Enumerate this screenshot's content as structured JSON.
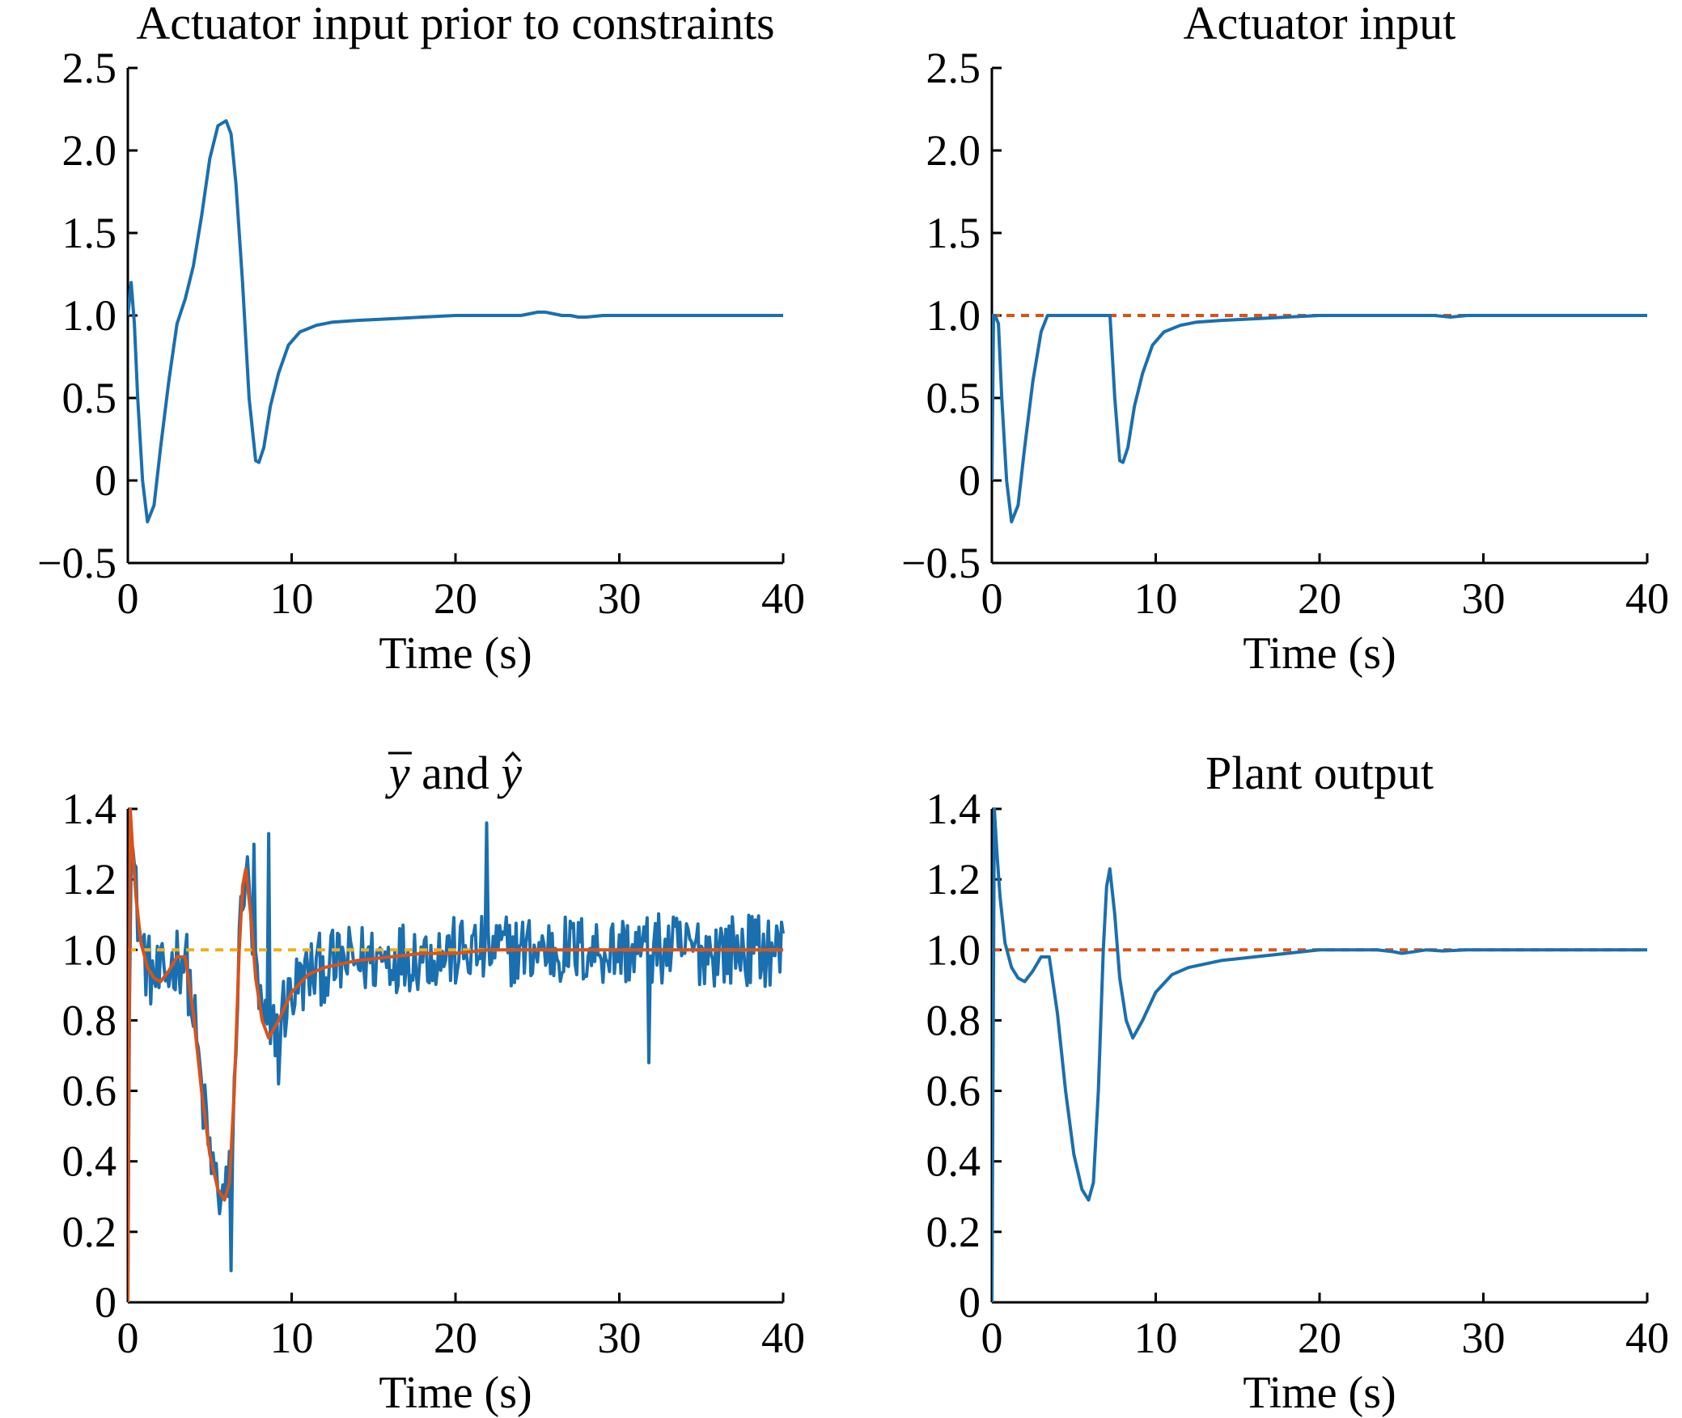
{
  "chart_data": [
    {
      "id": "a",
      "type": "line",
      "title": "Actuator input prior to constraints",
      "xlabel": "Time (s)",
      "ylabel": "",
      "xlim": [
        0,
        40
      ],
      "ylim": [
        -0.5,
        2.5
      ],
      "xticks": [
        0,
        10,
        20,
        30,
        40
      ],
      "xtick_labels": [
        "0",
        "10",
        "20",
        "30",
        "40"
      ],
      "yticks": [
        -0.5,
        0,
        0.5,
        1.0,
        1.5,
        2.0,
        2.5
      ],
      "ytick_labels": [
        "−0.5",
        "0",
        "0.5",
        "1.0",
        "1.5",
        "2.0",
        "2.5"
      ],
      "grid": false,
      "series": [
        {
          "color": "#1a6faf",
          "style": "solid",
          "x": [
            0,
            0.2,
            0.4,
            0.6,
            0.9,
            1.2,
            1.6,
            2.0,
            2.5,
            3.0,
            3.5,
            4.0,
            4.5,
            5.0,
            5.5,
            6.0,
            6.3,
            6.6,
            7.0,
            7.4,
            7.8,
            8.0,
            8.3,
            8.7,
            9.2,
            9.8,
            10.5,
            11.5,
            12.5,
            14,
            16,
            18,
            20,
            22,
            23.5,
            24,
            24.5,
            25,
            25.5,
            26,
            26.5,
            27,
            27.5,
            28,
            29,
            31,
            34,
            37,
            40
          ],
          "y": [
            1.0,
            1.2,
            0.95,
            0.5,
            0.0,
            -0.25,
            -0.15,
            0.2,
            0.6,
            0.95,
            1.1,
            1.3,
            1.6,
            1.95,
            2.15,
            2.18,
            2.1,
            1.8,
            1.2,
            0.5,
            0.12,
            0.11,
            0.2,
            0.45,
            0.65,
            0.82,
            0.9,
            0.94,
            0.96,
            0.97,
            0.98,
            0.99,
            1.0,
            1.0,
            1.0,
            1.0,
            1.01,
            1.02,
            1.02,
            1.01,
            1.0,
            1.0,
            0.99,
            0.99,
            1.0,
            1.0,
            1.0,
            1.0,
            1.0
          ]
        }
      ]
    },
    {
      "id": "b",
      "type": "line",
      "title": "Actuator input",
      "xlabel": "Time (s)",
      "ylabel": "",
      "xlim": [
        0,
        40
      ],
      "ylim": [
        -0.5,
        2.5
      ],
      "xticks": [
        0,
        10,
        20,
        30,
        40
      ],
      "xtick_labels": [
        "0",
        "10",
        "20",
        "30",
        "40"
      ],
      "yticks": [
        -0.5,
        0,
        0.5,
        1.0,
        1.5,
        2.0,
        2.5
      ],
      "ytick_labels": [
        "−0.5",
        "0",
        "0.5",
        "1.0",
        "1.5",
        "2.0",
        "2.5"
      ],
      "grid": false,
      "series": [
        {
          "color": "#d95319",
          "style": "dashed",
          "x": [
            0,
            40
          ],
          "y": [
            1.0,
            1.0
          ]
        },
        {
          "color": "#1a6faf",
          "style": "solid",
          "x": [
            0,
            0.1,
            0.2,
            0.4,
            0.6,
            0.9,
            1.2,
            1.6,
            2.0,
            2.5,
            3.0,
            3.4,
            3.6,
            5.0,
            7.2,
            7.21,
            7.5,
            7.8,
            8.0,
            8.3,
            8.7,
            9.2,
            9.8,
            10.5,
            11.5,
            12.5,
            14,
            16,
            18,
            20,
            22,
            24,
            25,
            26,
            27,
            28,
            29,
            31,
            34,
            37,
            40
          ],
          "y": [
            0.0,
            1.0,
            1.0,
            0.95,
            0.5,
            0.0,
            -0.25,
            -0.15,
            0.2,
            0.6,
            0.9,
            1.0,
            1.0,
            1.0,
            1.0,
            1.0,
            0.5,
            0.12,
            0.11,
            0.2,
            0.45,
            0.65,
            0.82,
            0.9,
            0.94,
            0.96,
            0.97,
            0.98,
            0.99,
            1.0,
            1.0,
            1.0,
            1.0,
            1.0,
            1.0,
            0.99,
            1.0,
            1.0,
            1.0,
            1.0,
            1.0
          ]
        }
      ]
    },
    {
      "id": "c",
      "type": "line",
      "title": "ȳ and ŷ",
      "title_parts": {
        "ybar": "y",
        "and": " and ",
        "yhat": "y"
      },
      "xlabel": "Time (s)",
      "ylabel": "",
      "xlim": [
        0,
        40
      ],
      "ylim": [
        0,
        1.4
      ],
      "xticks": [
        0,
        10,
        20,
        30,
        40
      ],
      "xtick_labels": [
        "0",
        "10",
        "20",
        "30",
        "40"
      ],
      "yticks": [
        0,
        0.2,
        0.4,
        0.6,
        0.8,
        1.0,
        1.2,
        1.4
      ],
      "ytick_labels": [
        "0",
        "0.2",
        "0.4",
        "0.6",
        "0.8",
        "1.0",
        "1.2",
        "1.4"
      ],
      "grid": false,
      "noise_series": {
        "color": "#1a6faf",
        "style": "solid",
        "dt": 0.1,
        "amplitude": 0.09,
        "spikes": [
          [
            21.9,
            1.36
          ],
          [
            31.8,
            0.68
          ],
          [
            8.6,
            1.33
          ],
          [
            6.3,
            0.09
          ],
          [
            7.7,
            1.3
          ],
          [
            9.2,
            0.62
          ]
        ]
      },
      "series": [
        {
          "color": "#edb120",
          "style": "dashed",
          "x": [
            0,
            40
          ],
          "y": [
            1.0,
            1.0
          ]
        },
        {
          "color": "#d95319",
          "style": "solid",
          "x": [
            0,
            0.15,
            0.3,
            0.5,
            0.8,
            1.2,
            1.6,
            2.0,
            2.5,
            3.0,
            3.5,
            4.0,
            4.5,
            5.0,
            5.5,
            5.9,
            6.2,
            6.5,
            6.8,
            7.0,
            7.2,
            7.5,
            7.8,
            8.2,
            8.6,
            9.2,
            10.0,
            11,
            12,
            14,
            16,
            18,
            20,
            22,
            24,
            26,
            28,
            40
          ],
          "y": [
            0.0,
            1.4,
            1.28,
            1.15,
            1.02,
            0.95,
            0.92,
            0.91,
            0.94,
            0.98,
            0.98,
            0.82,
            0.6,
            0.42,
            0.32,
            0.29,
            0.34,
            0.6,
            1.0,
            1.18,
            1.23,
            1.1,
            0.92,
            0.8,
            0.75,
            0.8,
            0.88,
            0.93,
            0.95,
            0.97,
            0.98,
            0.99,
            0.99,
            1.0,
            1.0,
            1.0,
            1.0,
            1.0
          ]
        }
      ]
    },
    {
      "id": "d",
      "type": "line",
      "title": "Plant output",
      "xlabel": "Time (s)",
      "ylabel": "",
      "xlim": [
        0,
        40
      ],
      "ylim": [
        0,
        1.4
      ],
      "xticks": [
        0,
        10,
        20,
        30,
        40
      ],
      "xtick_labels": [
        "0",
        "10",
        "20",
        "30",
        "40"
      ],
      "yticks": [
        0,
        0.2,
        0.4,
        0.6,
        0.8,
        1.0,
        1.2,
        1.4
      ],
      "ytick_labels": [
        "0",
        "0.2",
        "0.4",
        "0.6",
        "0.8",
        "1.0",
        "1.2",
        "1.4"
      ],
      "grid": false,
      "series": [
        {
          "color": "#d95319",
          "style": "dashed",
          "x": [
            0,
            40
          ],
          "y": [
            1.0,
            1.0
          ]
        },
        {
          "color": "#1a6faf",
          "style": "solid",
          "x": [
            0,
            0.15,
            0.3,
            0.5,
            0.8,
            1.2,
            1.6,
            2.0,
            2.5,
            3.0,
            3.5,
            4.0,
            4.5,
            5.0,
            5.5,
            5.9,
            6.2,
            6.5,
            6.8,
            7.0,
            7.2,
            7.5,
            7.8,
            8.2,
            8.6,
            9.2,
            10.0,
            11,
            12,
            14,
            16,
            18,
            20,
            22,
            23.5,
            24.5,
            25,
            25.5,
            26.5,
            27.5,
            29,
            40
          ],
          "y": [
            0.0,
            1.4,
            1.28,
            1.15,
            1.02,
            0.95,
            0.92,
            0.91,
            0.94,
            0.98,
            0.98,
            0.82,
            0.6,
            0.42,
            0.32,
            0.29,
            0.34,
            0.6,
            1.0,
            1.18,
            1.23,
            1.1,
            0.92,
            0.8,
            0.75,
            0.8,
            0.88,
            0.93,
            0.95,
            0.97,
            0.98,
            0.99,
            1.0,
            1.0,
            1.0,
            0.995,
            0.99,
            0.993,
            1.0,
            0.997,
            1.0,
            1.0
          ]
        }
      ]
    }
  ]
}
